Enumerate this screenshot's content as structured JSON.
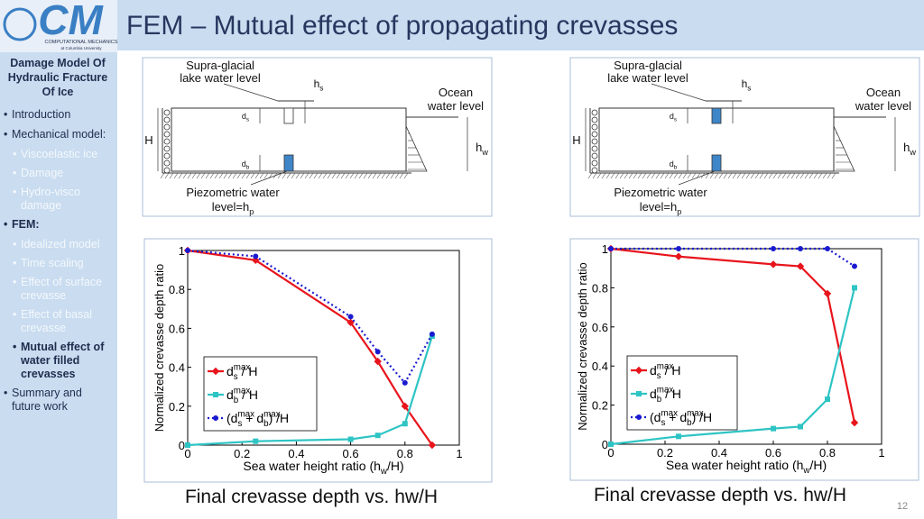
{
  "logo": {
    "mark": "CM",
    "line1": "COMPUTATIONAL MECHANICS",
    "line2": "at Columbia University"
  },
  "header": {
    "title": "FEM – Mutual effect of propagating crevasses"
  },
  "sidebar": {
    "title": "Damage Model Of Hydraulic Fracture Of Ice",
    "items": [
      "Introduction",
      "Mechanical model:",
      "Viscoelastic ice",
      "Damage",
      "Hydro-visco damage",
      "FEM:",
      "Idealized model",
      "Time scaling",
      "Effect of surface crevasse",
      "Effect of basal crevasse",
      "Mutual effect of water filled crevasses",
      "Summary and future work"
    ]
  },
  "diagrams": [
    {
      "supra1": "Supra-glacial",
      "supra2": "lake water level",
      "hs": [
        {
          "text": "h",
          "sub": "s"
        }
      ],
      "ocean1": "Ocean",
      "ocean2": "water level",
      "ds": [
        {
          "text": "d",
          "sub": "s"
        }
      ],
      "H": "H",
      "hw": [
        {
          "text": "h",
          "sub": "w"
        }
      ],
      "db": [
        {
          "text": "d",
          "sub": "b"
        }
      ],
      "piezo1": "Piezometric water",
      "piezo2": [
        {
          "text": "level=h",
          "sub": "p"
        }
      ]
    },
    {
      "supra1": "Supra-glacial",
      "supra2": "lake water level",
      "hs": [
        {
          "text": "h",
          "sub": "s"
        }
      ],
      "ocean1": "Ocean",
      "ocean2": "water level",
      "ds": [
        {
          "text": "d",
          "sub": "s"
        }
      ],
      "H": "H",
      "hw": [
        {
          "text": "h",
          "sub": "w"
        }
      ],
      "db": [
        {
          "text": "d",
          "sub": "b"
        }
      ],
      "piezo1": "Piezometric water",
      "piezo2": [
        {
          "text": "level=h",
          "sub": "p"
        }
      ]
    }
  ],
  "chart_data": [
    {
      "type": "line",
      "xlabel": [
        {
          "text": "Sea water height ratio (h",
          "sub": "w"
        },
        {
          "text": "/H)"
        }
      ],
      "ylabel": "Normalized crevasse depth ratio",
      "x": [
        0,
        0.25,
        0.6,
        0.7,
        0.8,
        0.9
      ],
      "xlim": [
        0,
        1
      ],
      "xticks": [
        0,
        0.2,
        0.4,
        0.6,
        0.8,
        1
      ],
      "ylim": [
        0,
        1
      ],
      "yticks": [
        0,
        0.2,
        0.4,
        0.6,
        0.8,
        1
      ],
      "legend": "lower left",
      "series": [
        {
          "name": [
            {
              "text": "d",
              "sub": "s",
              "sup": "max"
            },
            {
              "text": " / H"
            }
          ],
          "color": "#e8141c",
          "marker": "diamond",
          "line": "solid",
          "values": [
            1,
            0.95,
            0.63,
            0.43,
            0.2,
            0.0
          ]
        },
        {
          "name": [
            {
              "text": "d",
              "sub": "b",
              "sup": "max"
            },
            {
              "text": " / H"
            }
          ],
          "color": "#2ec4c4",
          "marker": "square",
          "line": "solid",
          "values": [
            0,
            0.02,
            0.03,
            0.05,
            0.11,
            0.56
          ]
        },
        {
          "name": [
            {
              "text": "(d",
              "sub": "s",
              "sup": "max"
            },
            {
              "text": " + d",
              "sub": "b",
              "sup": "max"
            },
            {
              "text": ") /H"
            }
          ],
          "color": "#1a1ad0",
          "marker": "dot",
          "line": "dotted",
          "values": [
            1,
            0.97,
            0.66,
            0.48,
            0.32,
            0.57
          ]
        }
      ]
    },
    {
      "type": "line",
      "xlabel": [
        {
          "text": "Sea water height ratio (h",
          "sub": "w"
        },
        {
          "text": "/H)"
        }
      ],
      "ylabel": "Normalized crevasse depth ratio",
      "x": [
        0,
        0.25,
        0.6,
        0.7,
        0.8,
        0.9
      ],
      "xlim": [
        0,
        1
      ],
      "xticks": [
        0,
        0.2,
        0.4,
        0.6,
        0.8,
        1
      ],
      "ylim": [
        0,
        1
      ],
      "yticks": [
        0,
        0.2,
        0.4,
        0.6,
        0.8,
        1
      ],
      "legend": "lower left",
      "series": [
        {
          "name": [
            {
              "text": "d",
              "sub": "s",
              "sup": "max"
            },
            {
              "text": " / H"
            }
          ],
          "color": "#e8141c",
          "marker": "diamond",
          "line": "solid",
          "values": [
            1,
            0.96,
            0.92,
            0.91,
            0.77,
            0.11
          ]
        },
        {
          "name": [
            {
              "text": "d",
              "sub": "b",
              "sup": "max"
            },
            {
              "text": " / H"
            }
          ],
          "color": "#2ec4c4",
          "marker": "square",
          "line": "solid",
          "values": [
            0,
            0.04,
            0.08,
            0.09,
            0.23,
            0.8
          ]
        },
        {
          "name": [
            {
              "text": "(d",
              "sub": "s",
              "sup": "max"
            },
            {
              "text": " + d",
              "sub": "b",
              "sup": "max"
            },
            {
              "text": ") /H"
            }
          ],
          "color": "#1a1ad0",
          "marker": "dot",
          "line": "dotted",
          "values": [
            1,
            1,
            1,
            1,
            1,
            0.91
          ]
        }
      ]
    }
  ],
  "captions": [
    "Final crevasse depth vs. hw/H",
    "Final crevasse depth vs. hw/H"
  ],
  "page_number": "12"
}
